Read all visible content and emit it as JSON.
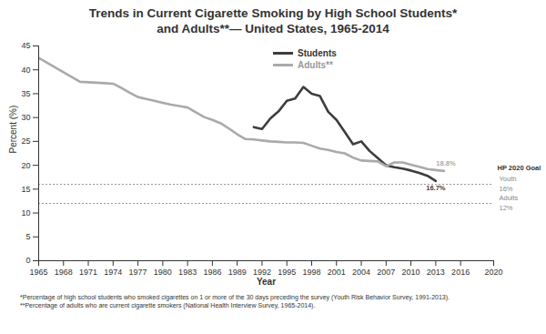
{
  "chart_data": {
    "type": "line",
    "title": "Trends in Current Cigarette Smoking by High School Students*\nand Adults**— United States, 1965-2014",
    "x_label": "Year",
    "y_label": "Percent (%)",
    "x": [
      1965,
      1966,
      1967,
      1968,
      1969,
      1970,
      1971,
      1972,
      1973,
      1974,
      1975,
      1976,
      1977,
      1978,
      1979,
      1980,
      1981,
      1982,
      1983,
      1984,
      1985,
      1986,
      1987,
      1988,
      1989,
      1990,
      1991,
      1992,
      1993,
      1994,
      1995,
      1996,
      1997,
      1998,
      1999,
      2000,
      2001,
      2002,
      2003,
      2004,
      2005,
      2006,
      2007,
      2008,
      2009,
      2010,
      2011,
      2012,
      2013,
      2014
    ],
    "series": [
      {
        "name": "Students",
        "color": "#3d3d3d",
        "line_style": "solid",
        "values": [
          null,
          null,
          null,
          null,
          null,
          null,
          null,
          null,
          null,
          null,
          null,
          null,
          null,
          null,
          null,
          null,
          null,
          null,
          null,
          null,
          null,
          null,
          null,
          null,
          null,
          null,
          28.0,
          27.6,
          29.8,
          31.3,
          33.5,
          34.0,
          36.4,
          35.0,
          34.5,
          31.2,
          29.5,
          27.0,
          24.4,
          25.0,
          23.0,
          21.5,
          20.0,
          19.6,
          19.3,
          18.9,
          18.4,
          17.8,
          16.7,
          null
        ]
      },
      {
        "name": "Adults**",
        "color": "#aaaaaa",
        "line_style": "solid",
        "values": [
          42.5,
          41.5,
          40.5,
          39.5,
          38.5,
          37.5,
          37.4,
          37.3,
          37.2,
          37.1,
          36.2,
          35.2,
          34.3,
          33.9,
          33.5,
          33.1,
          32.7,
          32.4,
          32.1,
          31.1,
          30.1,
          29.5,
          28.8,
          27.7,
          26.5,
          25.5,
          25.4,
          25.2,
          25.0,
          24.9,
          24.8,
          24.8,
          24.7,
          24.1,
          23.5,
          23.2,
          22.8,
          22.5,
          21.6,
          21.0,
          20.9,
          20.8,
          19.8,
          20.6,
          20.6,
          20.1,
          19.7,
          19.2,
          19.0,
          18.8
        ]
      }
    ],
    "xlim": [
      1965,
      2020
    ],
    "xticks": [
      1965,
      1968,
      1971,
      1974,
      1977,
      1980,
      1983,
      1986,
      1989,
      1992,
      1995,
      1998,
      2001,
      2004,
      2007,
      2010,
      2013,
      2016,
      2020
    ],
    "ylim": [
      0,
      45
    ],
    "yticks": [
      0,
      5,
      10,
      15,
      20,
      25,
      30,
      35,
      40,
      45
    ],
    "grid": false,
    "legend": "top",
    "annotations": [
      {
        "text": "18.8%",
        "x": 2014,
        "y": 18.8,
        "series": "Adults**"
      },
      {
        "text": "16.7%",
        "x": 2013,
        "y": 16.7,
        "series": "Students"
      }
    ],
    "reference_title": "HP 2020 Goal",
    "reference_lines": [
      {
        "value": 16,
        "label": "Youth",
        "value_label": "16%"
      },
      {
        "value": 12,
        "label": "Adults",
        "value_label": "12%"
      }
    ],
    "notes": [
      "*Percentage of high school students who smoked cigarettes on 1 or more of the 30 days preceding the survey (Youth Risk Behavior Survey, 1991-2013).",
      "**Percentage of adults who are current cigarette smokers (National Health Interview Survey, 1965-2014)."
    ]
  }
}
